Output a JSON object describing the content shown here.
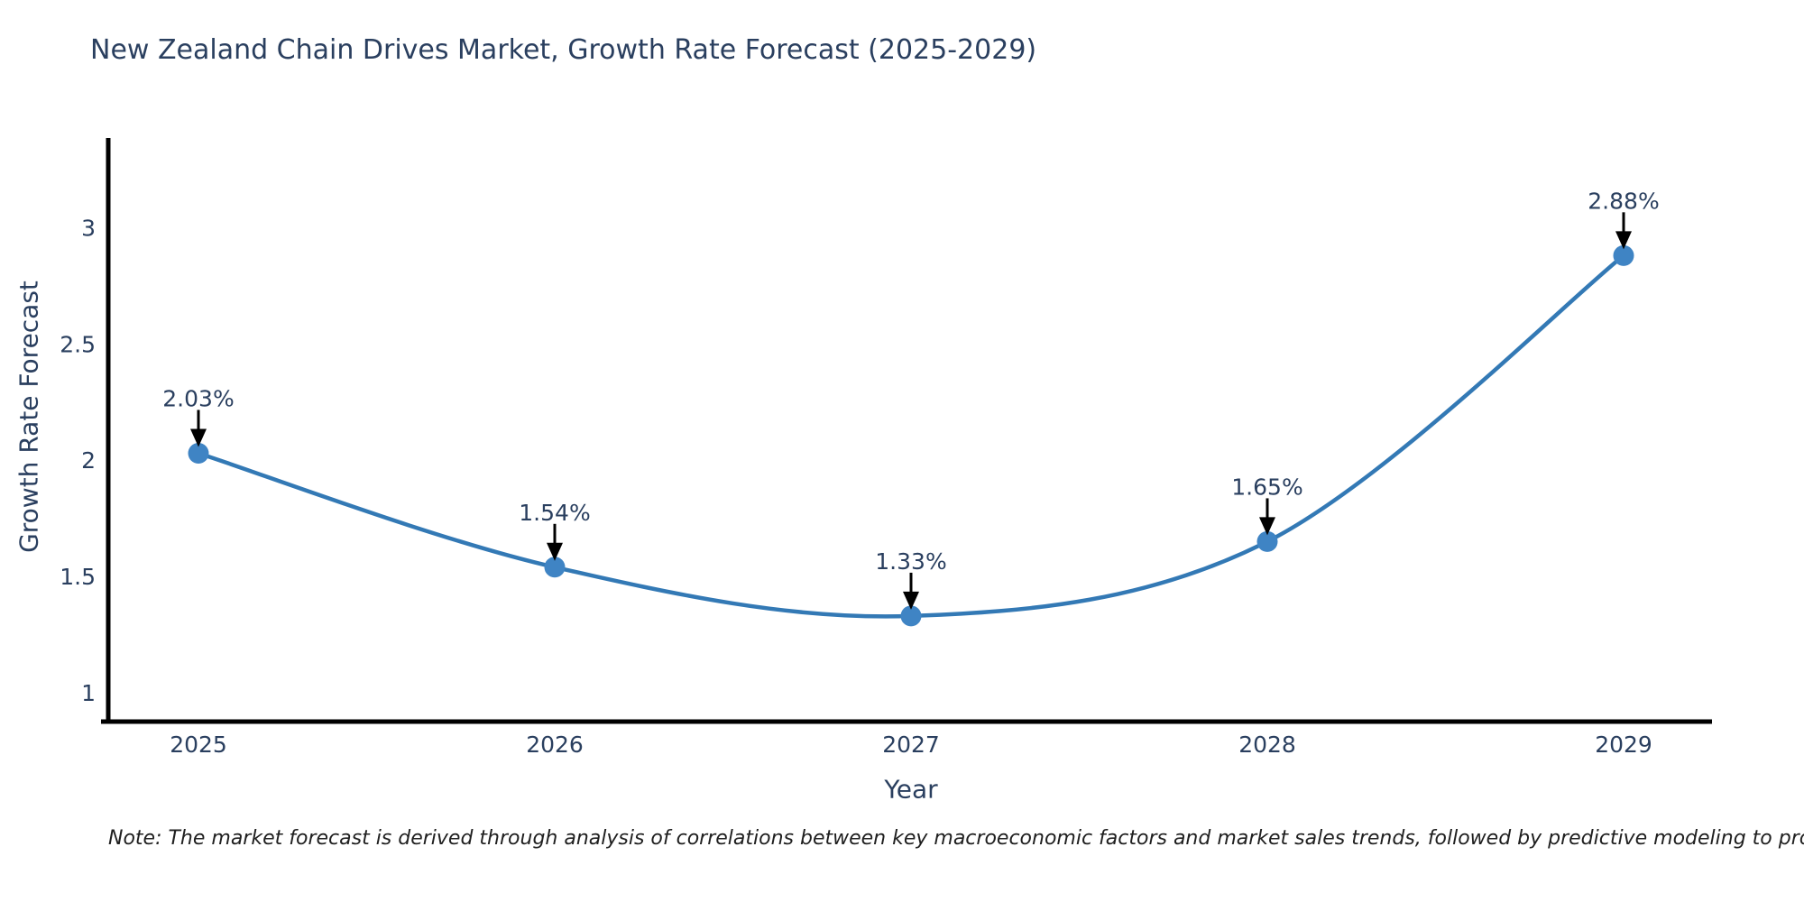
{
  "page": {
    "title": "New Zealand Chain Drives Market, Growth Rate Forecast (2025-2029)",
    "note": "Note: The market forecast is derived through analysis of correlations between key macroeconomic factors and market sales trends, followed by predictive modeling to project future sales"
  },
  "chart_data": {
    "type": "line",
    "title": "New Zealand Chain Drives Market, Growth Rate Forecast (2025-2029)",
    "xlabel": "Year",
    "ylabel": "Growth Rate Forecast",
    "categories": [
      "2025",
      "2026",
      "2027",
      "2028",
      "2029"
    ],
    "values": [
      2.03,
      1.54,
      1.33,
      1.65,
      2.88
    ],
    "point_labels": [
      "2.03%",
      "1.54%",
      "1.33%",
      "1.65%",
      "2.88%"
    ],
    "series": [
      {
        "name": "Growth Rate Forecast",
        "values": [
          2.03,
          1.54,
          1.33,
          1.65,
          2.88
        ]
      }
    ],
    "y_ticks": [
      1,
      1.5,
      2,
      2.5,
      3
    ],
    "y_tick_labels": [
      "1",
      "1.5",
      "2",
      "2.5",
      "3"
    ],
    "ylim": [
      0.88,
      3.38
    ],
    "grid": false,
    "legend_position": "none",
    "line_shape": "spline",
    "annotations_have_arrows": true,
    "colors": {
      "line": "#3379b5",
      "marker": "#3f84c4",
      "arrow": "#000000",
      "axis": "#000000",
      "text": "#2a3f5f",
      "note_text": "#1f1f1f",
      "background": "#ffffff"
    }
  }
}
